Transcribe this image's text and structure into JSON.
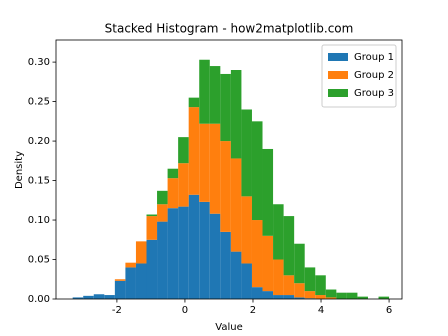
{
  "chart_data": {
    "type": "stacked_histogram",
    "title": "Stacked Histogram - how2matplotlib.com",
    "x_label": "Value",
    "y_label": "Density",
    "bins": [
      -3.3,
      -2.99,
      -2.68,
      -2.37,
      -2.06,
      -1.75,
      -1.44,
      -1.13,
      -0.82,
      -0.51,
      -0.2,
      0.11,
      0.42,
      0.73,
      1.04,
      1.35,
      1.66,
      1.97,
      2.28,
      2.59,
      2.9,
      3.21,
      3.52,
      3.83,
      4.14,
      4.45,
      4.76,
      5.07,
      5.38,
      5.69,
      6.0
    ],
    "series": [
      {
        "name": "Group 1",
        "color": "#1f77b4",
        "values": [
          0.002,
          0.004,
          0.006,
          0.005,
          0.023,
          0.04,
          0.045,
          0.075,
          0.098,
          0.115,
          0.117,
          0.132,
          0.123,
          0.108,
          0.085,
          0.06,
          0.045,
          0.015,
          0.01,
          0.005,
          0.005,
          0.002,
          0.001,
          0,
          0,
          0,
          0,
          0,
          0,
          0
        ]
      },
      {
        "name": "Group 2",
        "color": "#ff7f0e",
        "values": [
          0,
          0,
          0,
          0,
          0.002,
          0.006,
          0.028,
          0.03,
          0.022,
          0.038,
          0.055,
          0.111,
          0.099,
          0.114,
          0.115,
          0.118,
          0.085,
          0.085,
          0.07,
          0.045,
          0.025,
          0.018,
          0.009,
          0.005,
          0.002,
          0,
          0,
          0,
          0,
          0
        ]
      },
      {
        "name": "Group 3",
        "color": "#2ca02c",
        "values": [
          0,
          0,
          0,
          0,
          0,
          0,
          0,
          0.002,
          0.017,
          0.012,
          0.033,
          0.012,
          0.081,
          0.073,
          0.085,
          0.112,
          0.11,
          0.125,
          0.11,
          0.07,
          0.075,
          0.05,
          0.03,
          0.025,
          0.01,
          0.008,
          0.008,
          0.003,
          0,
          0.003
        ]
      }
    ],
    "xlim": [
      -3.79,
      6.38
    ],
    "ylim": [
      0,
      0.328
    ],
    "xticks": [
      -2,
      0,
      2,
      4,
      6
    ],
    "yticks": [
      {
        "value": 0,
        "label": "0.00"
      },
      {
        "value": 0.05,
        "label": "0.05"
      },
      {
        "value": 0.1,
        "label": "0.10"
      },
      {
        "value": 0.15,
        "label": "0.15"
      },
      {
        "value": 0.2,
        "label": "0.20"
      },
      {
        "value": 0.25,
        "label": "0.25"
      },
      {
        "value": 0.3,
        "label": "0.30"
      }
    ],
    "legend": "upper right"
  }
}
